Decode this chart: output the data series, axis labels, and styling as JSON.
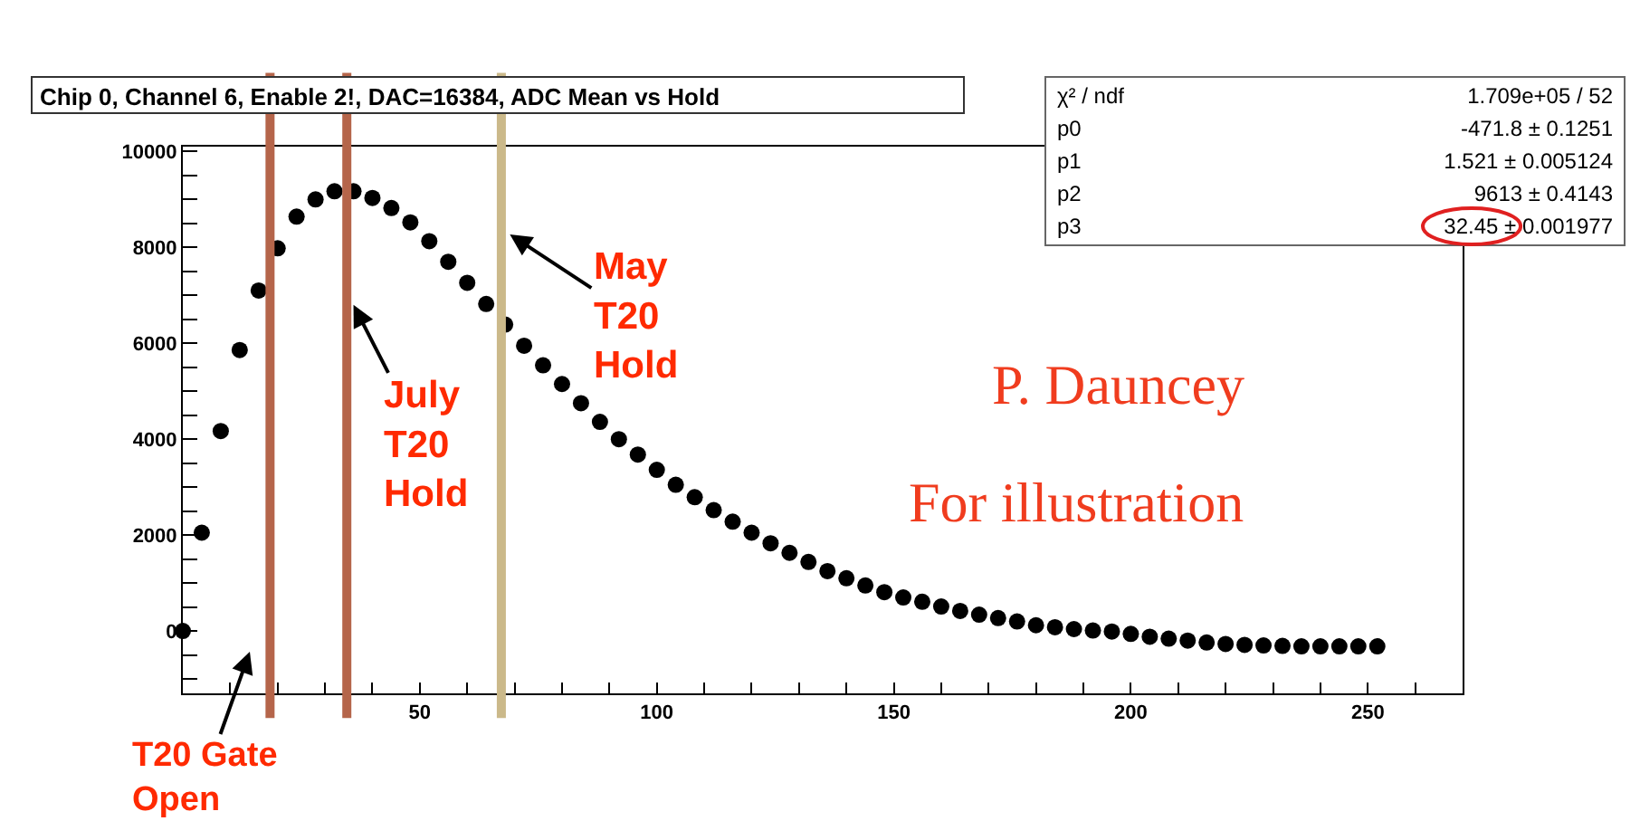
{
  "chart_data": {
    "type": "scatter",
    "title": "Chip 0, Channel 6, Enable 2!, DAC=16384, ADC Mean vs Hold",
    "x": [
      0,
      4,
      8,
      12,
      16,
      20,
      24,
      28,
      32,
      36,
      40,
      44,
      48,
      52,
      56,
      60,
      64,
      68,
      72,
      76,
      80,
      84,
      88,
      92,
      96,
      100,
      104,
      108,
      112,
      116,
      120,
      124,
      128,
      132,
      136,
      140,
      144,
      148,
      152,
      156,
      160,
      164,
      168,
      172,
      176,
      180,
      184,
      188,
      192,
      196,
      200,
      204,
      208,
      212,
      216,
      220,
      224,
      228,
      232,
      236,
      240,
      244,
      248,
      252
    ],
    "series": [
      {
        "color": "#000000",
        "values": [
          0,
          2050,
          4170,
          5860,
          7100,
          7980,
          8640,
          9000,
          9170,
          9170,
          9030,
          8820,
          8520,
          8130,
          7700,
          7260,
          6820,
          6390,
          5950,
          5540,
          5150,
          4750,
          4360,
          4000,
          3680,
          3360,
          3050,
          2790,
          2520,
          2280,
          2050,
          1830,
          1630,
          1440,
          1250,
          1100,
          950,
          810,
          700,
          610,
          510,
          420,
          340,
          270,
          200,
          120,
          80,
          40,
          10,
          -10,
          -60,
          -120,
          -160,
          -200,
          -240,
          -270,
          -290,
          -300,
          -310,
          -320,
          -320,
          -320,
          -320,
          -320
        ]
      }
    ],
    "marker": "circle",
    "grid": false,
    "xlim": [
      0,
      270
    ],
    "xticks": [
      {
        "value": 10,
        "label": null
      },
      {
        "value": 20,
        "label": null
      },
      {
        "value": 30,
        "label": null
      },
      {
        "value": 40,
        "label": null
      },
      50,
      {
        "value": 60,
        "label": null
      },
      {
        "value": 70,
        "label": null
      },
      {
        "value": 80,
        "label": null
      },
      {
        "value": 90,
        "label": null
      },
      100,
      {
        "value": 110,
        "label": null
      },
      {
        "value": 120,
        "label": null
      },
      {
        "value": 130,
        "label": null
      },
      {
        "value": 140,
        "label": null
      },
      150,
      {
        "value": 160,
        "label": null
      },
      {
        "value": 170,
        "label": null
      },
      {
        "value": 180,
        "label": null
      },
      {
        "value": 190,
        "label": null
      },
      200,
      {
        "value": 210,
        "label": null
      },
      {
        "value": 220,
        "label": null
      },
      {
        "value": 230,
        "label": null
      },
      {
        "value": 240,
        "label": null
      },
      250,
      {
        "value": 260,
        "label": null
      }
    ],
    "ylim": [
      -1300,
      10100
    ],
    "yticks": [
      {
        "value": -1000,
        "label": null
      },
      {
        "value": -500,
        "label": null
      },
      0,
      {
        "value": 500,
        "label": null
      },
      {
        "value": 1000,
        "label": null
      },
      {
        "value": 1500,
        "label": null
      },
      2000,
      {
        "value": 2500,
        "label": null
      },
      {
        "value": 3000,
        "label": null
      },
      {
        "value": 3500,
        "label": null
      },
      4000,
      {
        "value": 4500,
        "label": null
      },
      {
        "value": 5000,
        "label": null
      },
      {
        "value": 5500,
        "label": null
      },
      6000,
      {
        "value": 6500,
        "label": null
      },
      {
        "value": 7000,
        "label": null
      },
      {
        "value": 7500,
        "label": null
      },
      8000,
      {
        "value": 8500,
        "label": null
      },
      {
        "value": 9000,
        "label": null
      },
      {
        "value": 9500,
        "label": null
      },
      10000
    ],
    "ref_lines": [
      {
        "axis": "x",
        "value": 18.4,
        "color": "#b5654a"
      },
      {
        "axis": "x",
        "value": 34.6,
        "color": "#b5654a"
      },
      {
        "axis": "x",
        "value": 67.2,
        "color": "#cbb98a"
      }
    ],
    "annotations": [
      "χ² / ndf",
      "1.709e+05 / 52",
      "p0",
      "-471.8 ± 0.1251",
      "p1",
      "1.521 ± 0.005124",
      "p2",
      "9613 ± 0.4143",
      "p3",
      "32.45 ± 0.001977",
      "P. Dauncey",
      "For illustration",
      "T20 Gate\nOpen",
      {
        "text": "July\nT20\nHold",
        "x": 36,
        "y": 6800
      },
      {
        "text": "May\nT20\nHold",
        "x": 69,
        "y": 8270
      }
    ]
  }
}
